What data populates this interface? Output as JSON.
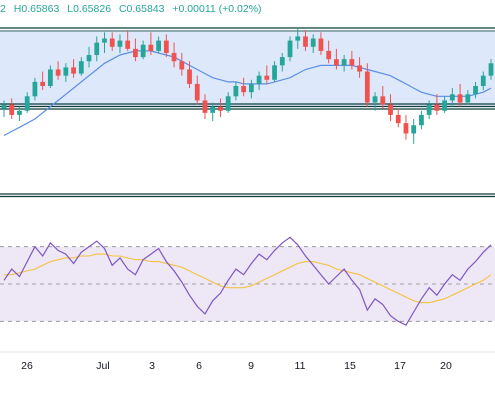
{
  "ohlc": {
    "open_fragment": "2",
    "high": "H0.65863",
    "low": "L0.65826",
    "close": "C0.65843",
    "change": "+0.00011 (+0.02%)"
  },
  "colors": {
    "up": "#26a69a",
    "down": "#ef5350",
    "ma": "#5b8ee6",
    "rsi": "#7e57c2",
    "rsi_ma": "#f6c242",
    "band_fill": "#dde8fb",
    "rsi_band_fill": "#ede7f6",
    "level_line": "#0f3d3a"
  },
  "chart_data": [
    {
      "type": "candlestick",
      "x_axis_labels": [
        "26",
        "Jul",
        "3",
        "6",
        "9",
        "11",
        "15",
        "17",
        "20"
      ],
      "series": [
        {
          "kind": "ohlc",
          "values": [
            [
              0.6585,
              0.6589,
              0.6581,
              0.6587
            ],
            [
              0.6587,
              0.659,
              0.658,
              0.6582
            ],
            [
              0.6582,
              0.6586,
              0.6579,
              0.6584
            ],
            [
              0.6584,
              0.6593,
              0.6583,
              0.6591
            ],
            [
              0.6591,
              0.66,
              0.6589,
              0.6598
            ],
            [
              0.6598,
              0.6603,
              0.6594,
              0.6596
            ],
            [
              0.6596,
              0.6606,
              0.6595,
              0.6604
            ],
            [
              0.6604,
              0.6608,
              0.6599,
              0.6601
            ],
            [
              0.6601,
              0.6607,
              0.6598,
              0.6605
            ],
            [
              0.6605,
              0.6609,
              0.66,
              0.6602
            ],
            [
              0.6602,
              0.661,
              0.6601,
              0.6608
            ],
            [
              0.6608,
              0.6615,
              0.6605,
              0.6611
            ],
            [
              0.6611,
              0.662,
              0.6608,
              0.6617
            ],
            [
              0.6617,
              0.6622,
              0.6612,
              0.6619
            ],
            [
              0.6619,
              0.6622,
              0.6613,
              0.6615
            ],
            [
              0.6615,
              0.6621,
              0.6612,
              0.6618
            ],
            [
              0.6618,
              0.6623,
              0.6613,
              0.6614
            ],
            [
              0.6614,
              0.6619,
              0.6608,
              0.661
            ],
            [
              0.661,
              0.6618,
              0.6609,
              0.6616
            ],
            [
              0.6616,
              0.6622,
              0.6611,
              0.6613
            ],
            [
              0.6613,
              0.662,
              0.6612,
              0.6618
            ],
            [
              0.6618,
              0.6621,
              0.661,
              0.6612
            ],
            [
              0.6612,
              0.6617,
              0.6605,
              0.6608
            ],
            [
              0.6608,
              0.6612,
              0.6601,
              0.6604
            ],
            [
              0.6604,
              0.6608,
              0.6595,
              0.6597
            ],
            [
              0.6597,
              0.6601,
              0.6587,
              0.6589
            ],
            [
              0.6589,
              0.6592,
              0.658,
              0.6583
            ],
            [
              0.6583,
              0.6588,
              0.6579,
              0.6586
            ],
            [
              0.6586,
              0.659,
              0.6581,
              0.6584
            ],
            [
              0.6584,
              0.6593,
              0.6583,
              0.6591
            ],
            [
              0.6591,
              0.6598,
              0.6589,
              0.6596
            ],
            [
              0.6596,
              0.66,
              0.6591,
              0.6593
            ],
            [
              0.6593,
              0.6599,
              0.659,
              0.6597
            ],
            [
              0.6597,
              0.6603,
              0.6594,
              0.6601
            ],
            [
              0.6601,
              0.6606,
              0.6597,
              0.6599
            ],
            [
              0.6599,
              0.6608,
              0.6598,
              0.6606
            ],
            [
              0.6606,
              0.6612,
              0.6603,
              0.661
            ],
            [
              0.661,
              0.662,
              0.6608,
              0.6618
            ],
            [
              0.6618,
              0.6624,
              0.6614,
              0.662
            ],
            [
              0.662,
              0.6623,
              0.6613,
              0.6615
            ],
            [
              0.6615,
              0.6621,
              0.6612,
              0.6619
            ],
            [
              0.6619,
              0.6622,
              0.6611,
              0.6613
            ],
            [
              0.6613,
              0.6618,
              0.6607,
              0.6609
            ],
            [
              0.6609,
              0.6614,
              0.6604,
              0.6606
            ],
            [
              0.6606,
              0.6611,
              0.6603,
              0.6609
            ],
            [
              0.6609,
              0.6613,
              0.6604,
              0.6606
            ],
            [
              0.6606,
              0.661,
              0.66,
              0.6603
            ],
            [
              0.6603,
              0.6607,
              0.6586,
              0.6588
            ],
            [
              0.6588,
              0.6593,
              0.6584,
              0.6591
            ],
            [
              0.6591,
              0.6596,
              0.6585,
              0.6587
            ],
            [
              0.6587,
              0.6592,
              0.6579,
              0.6582
            ],
            [
              0.6582,
              0.6585,
              0.6576,
              0.6578
            ],
            [
              0.6578,
              0.6582,
              0.657,
              0.6573
            ],
            [
              0.6573,
              0.658,
              0.6568,
              0.6577
            ],
            [
              0.6577,
              0.6584,
              0.6575,
              0.6582
            ],
            [
              0.6582,
              0.6589,
              0.658,
              0.6587
            ],
            [
              0.6587,
              0.6592,
              0.6582,
              0.6584
            ],
            [
              0.6584,
              0.6591,
              0.6583,
              0.6589
            ],
            [
              0.6589,
              0.6595,
              0.6586,
              0.6592
            ],
            [
              0.6592,
              0.6597,
              0.6586,
              0.6588
            ],
            [
              0.6588,
              0.6594,
              0.6587,
              0.6592
            ],
            [
              0.6592,
              0.6598,
              0.659,
              0.6596
            ],
            [
              0.6596,
              0.6603,
              0.6594,
              0.6601
            ],
            [
              0.6601,
              0.6609,
              0.6599,
              0.6607
            ]
          ]
        },
        {
          "kind": "moving_average",
          "values": [
            0.6572,
            0.6574,
            0.6576,
            0.6578,
            0.658,
            0.6583,
            0.6586,
            0.6589,
            0.6592,
            0.6595,
            0.6598,
            0.6601,
            0.6604,
            0.6607,
            0.6609,
            0.6611,
            0.6612,
            0.6613,
            0.6613,
            0.6613,
            0.6612,
            0.6611,
            0.661,
            0.6608,
            0.6606,
            0.6604,
            0.6602,
            0.66,
            0.6599,
            0.6598,
            0.6598,
            0.6597,
            0.6597,
            0.6597,
            0.6597,
            0.6598,
            0.6599,
            0.66,
            0.6602,
            0.6604,
            0.6605,
            0.6606,
            0.6606,
            0.6606,
            0.6606,
            0.6606,
            0.6605,
            0.6604,
            0.6603,
            0.6602,
            0.6601,
            0.6599,
            0.6597,
            0.6595,
            0.6593,
            0.6592,
            0.6591,
            0.6591,
            0.6591,
            0.6591,
            0.6591,
            0.6592,
            0.6593,
            0.6595
          ]
        }
      ]
    },
    {
      "type": "line",
      "series": [
        {
          "kind": "rsi",
          "values": [
            52,
            58,
            54,
            62,
            70,
            65,
            72,
            68,
            66,
            61,
            67,
            70,
            73,
            69,
            60,
            64,
            58,
            55,
            63,
            66,
            69,
            62,
            57,
            51,
            44,
            38,
            34,
            41,
            45,
            52,
            58,
            55,
            61,
            66,
            63,
            68,
            72,
            75,
            71,
            65,
            60,
            55,
            50,
            54,
            58,
            52,
            47,
            36,
            42,
            39,
            33,
            30,
            28,
            35,
            42,
            48,
            44,
            50,
            55,
            52,
            58,
            62,
            67,
            71
          ]
        },
        {
          "kind": "rsi_moving_average",
          "values": [
            55,
            55,
            56,
            57,
            58,
            60,
            62,
            63,
            64,
            64,
            65,
            65,
            66,
            66,
            65,
            65,
            64,
            63,
            63,
            62,
            62,
            61,
            60,
            59,
            57,
            55,
            53,
            51,
            49,
            48,
            48,
            48,
            49,
            51,
            53,
            55,
            57,
            59,
            61,
            62,
            62,
            61,
            60,
            58,
            57,
            56,
            55,
            53,
            51,
            49,
            47,
            45,
            43,
            41,
            40,
            40,
            41,
            42,
            44,
            46,
            48,
            50,
            52,
            55
          ]
        }
      ],
      "levels": [
        70,
        50,
        30
      ]
    }
  ]
}
